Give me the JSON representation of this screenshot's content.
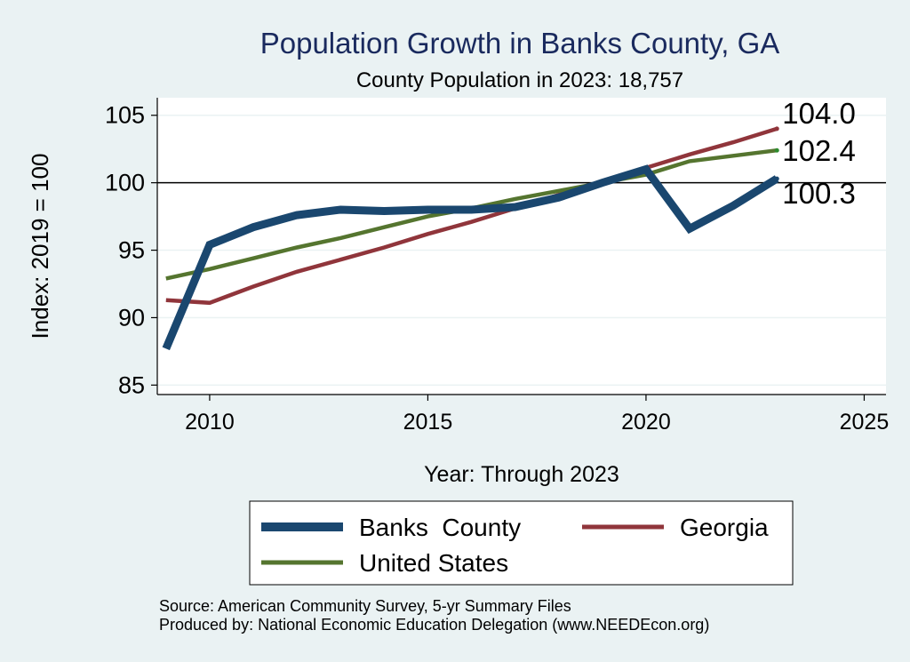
{
  "chart_data": {
    "type": "line",
    "title": "Population Growth in Banks County, GA",
    "subtitle": "County Population in 2023: 18,757",
    "xlabel": "Year: Through 2023",
    "ylabel": "Index: 2019 = 100",
    "xlim": [
      2008.8,
      2025.5
    ],
    "ylim": [
      84.3,
      106.3
    ],
    "x_ticks": [
      2010,
      2015,
      2020,
      2025
    ],
    "y_ticks": [
      85,
      90,
      95,
      100,
      105
    ],
    "reference_line": 100,
    "x": [
      2009,
      2010,
      2011,
      2012,
      2013,
      2014,
      2015,
      2016,
      2017,
      2018,
      2019,
      2020,
      2021,
      2022,
      2023
    ],
    "series": [
      {
        "name": "Banks  County",
        "color": "#1a476f",
        "values": [
          87.7,
          95.4,
          96.7,
          97.6,
          98.0,
          97.9,
          98.0,
          98.0,
          98.2,
          98.9,
          100.0,
          101.0,
          96.6,
          98.3,
          100.3
        ],
        "end_label": "100.3"
      },
      {
        "name": "Georgia",
        "color": "#90353b",
        "values": [
          91.3,
          91.1,
          92.3,
          93.4,
          94.3,
          95.2,
          96.2,
          97.1,
          98.1,
          99.1,
          100.0,
          101.1,
          102.1,
          103.0,
          104.0
        ],
        "end_label": "104.0"
      },
      {
        "name": "United States",
        "color": "#55752f",
        "values": [
          92.9,
          93.6,
          94.4,
          95.2,
          95.9,
          96.7,
          97.5,
          98.1,
          98.8,
          99.4,
          100.0,
          100.6,
          101.6,
          102.0,
          102.4
        ],
        "end_label": "102.4"
      }
    ]
  },
  "legend": {
    "banks": "Banks  County",
    "georgia": "Georgia",
    "us": "United States"
  },
  "footer": {
    "source": "Source: American Community Survey, 5-yr Summary Files",
    "produced": "Produced by: National Economic Education Delegation (www.NEEDEcon.org)"
  }
}
